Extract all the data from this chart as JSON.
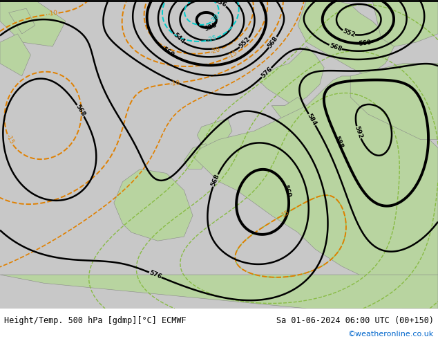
{
  "title_left": "Height/Temp. 500 hPa [gdmp][°C] ECMWF",
  "title_right": "Sa 01-06-2024 06:00 UTC (00+150)",
  "watermark": "©weatheronline.co.uk",
  "ocean_color": "#c8c8c8",
  "land_color": "#b8d4a0",
  "height_color": "#000000",
  "temp_orange": "#e08000",
  "temp_cyan": "#00cccc",
  "temp_green": "#88bb44",
  "figsize": [
    6.34,
    4.9
  ],
  "dpi": 100,
  "font_size_title": 8.5,
  "font_size_watermark": 8
}
